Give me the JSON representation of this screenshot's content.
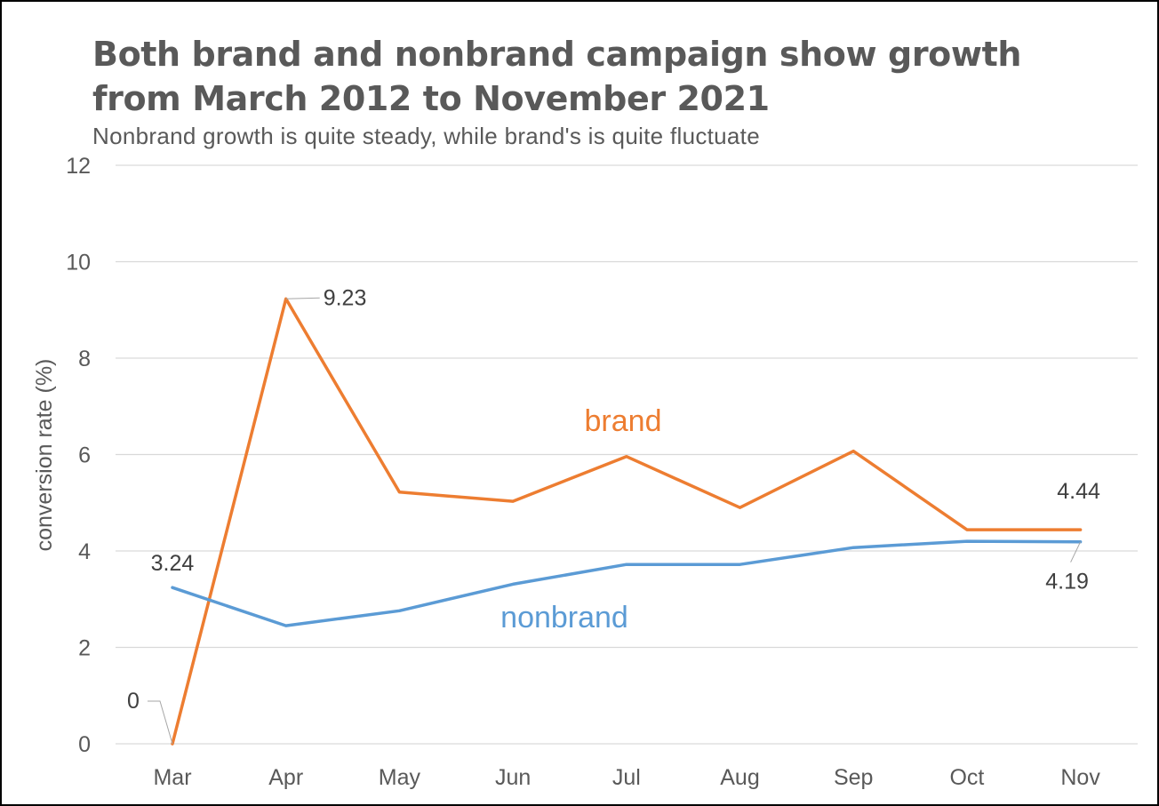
{
  "chart_data": {
    "type": "line",
    "title": "Both brand and nonbrand campaign show growth from March 2012 to November 2021",
    "subtitle": "Nonbrand growth is quite steady, while brand's is quite fluctuate",
    "xlabel": "",
    "ylabel": "conversion rate (%)",
    "categories": [
      "Mar",
      "Apr",
      "May",
      "Jun",
      "Jul",
      "Aug",
      "Sep",
      "Oct",
      "Nov"
    ],
    "ylim": [
      0,
      12
    ],
    "yticks": [
      0,
      2,
      4,
      6,
      8,
      10,
      12
    ],
    "grid": true,
    "legend": "inline labels",
    "series": [
      {
        "name": "brand",
        "color": "#ED7D31",
        "values": [
          0,
          9.23,
          5.22,
          5.03,
          5.96,
          4.9,
          6.07,
          4.44,
          4.44
        ]
      },
      {
        "name": "nonbrand",
        "color": "#5B9BD5",
        "values": [
          3.24,
          2.45,
          2.76,
          3.31,
          3.72,
          3.72,
          4.07,
          4.2,
          4.19
        ]
      }
    ],
    "annotations": [
      {
        "series": 0,
        "index": 0,
        "text": "0"
      },
      {
        "series": 0,
        "index": 1,
        "text": "9.23"
      },
      {
        "series": 0,
        "index": 8,
        "text": "4.44"
      },
      {
        "series": 1,
        "index": 0,
        "text": "3.24"
      },
      {
        "series": 1,
        "index": 8,
        "text": "4.19"
      }
    ]
  }
}
